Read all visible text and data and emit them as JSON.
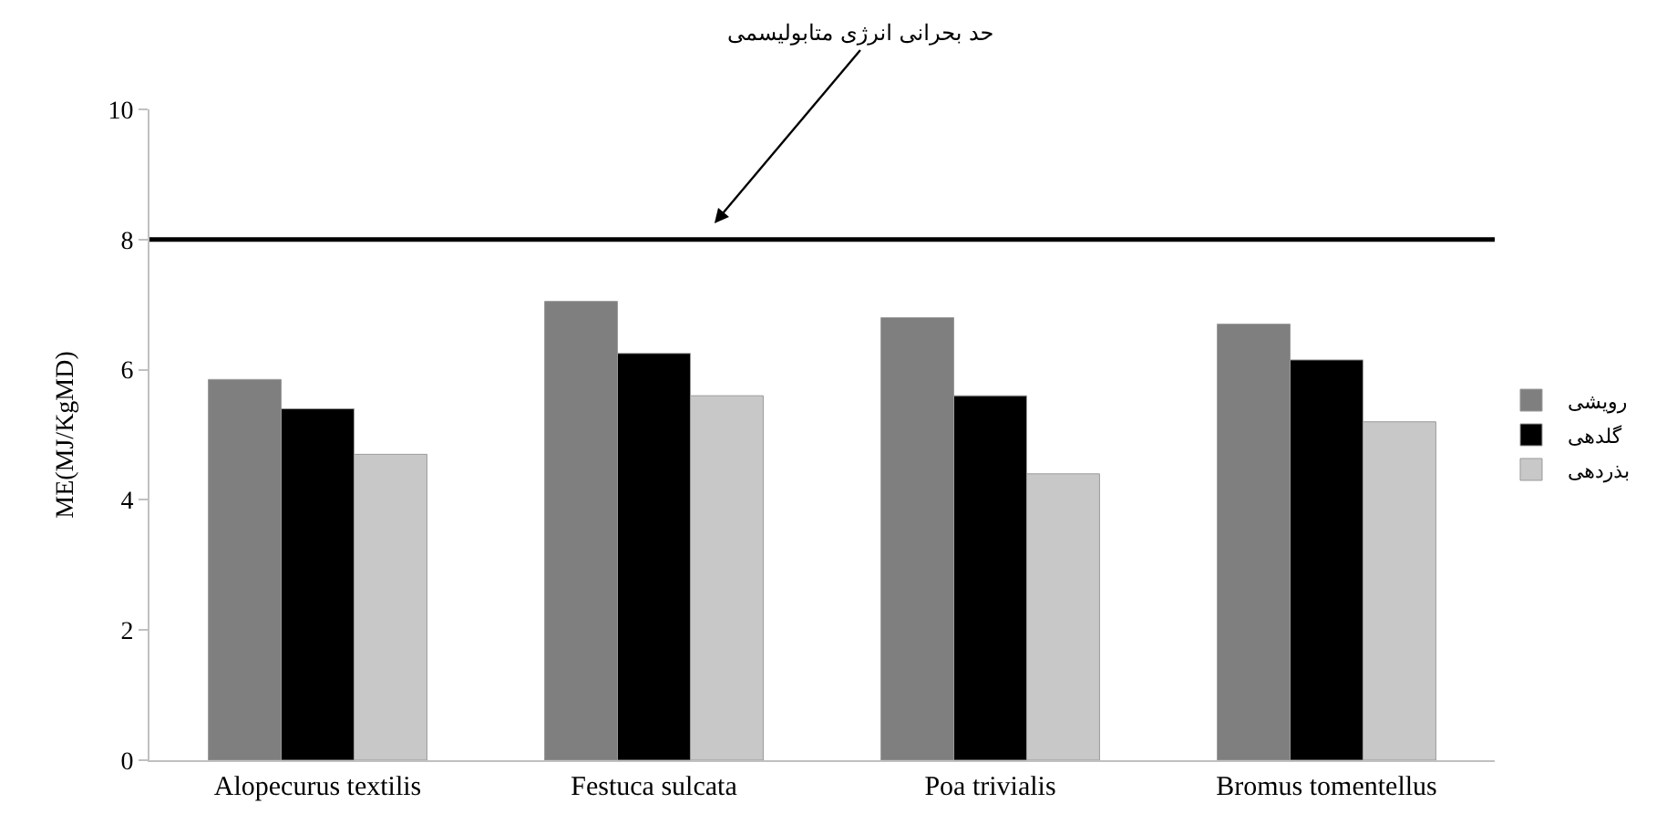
{
  "chart_data": {
    "type": "bar",
    "ylabel": "ME(MJ/KgMD)",
    "categories": [
      "Alopecurus textilis",
      "Festuca sulcata",
      "Poa trivialis",
      "Bromus tomentellus"
    ],
    "series": [
      {
        "name": "رویشی",
        "color": "#7f7f7f",
        "values": [
          5.85,
          7.05,
          6.8,
          6.7
        ]
      },
      {
        "name": "گلدهی",
        "color": "#000000",
        "values": [
          5.4,
          6.25,
          5.6,
          6.15
        ]
      },
      {
        "name": "بذردهی",
        "color": "#c8c8c8",
        "values": [
          4.7,
          5.6,
          4.4,
          5.2
        ]
      }
    ],
    "ylim": [
      0,
      10
    ],
    "yticks": [
      0,
      2,
      4,
      6,
      8,
      10
    ],
    "legend": "right",
    "ref_lines": [
      {
        "axis": "y",
        "value": 8,
        "label": "حد بحرانی انرژی متابولیسمی",
        "color": "#000000"
      }
    ]
  }
}
